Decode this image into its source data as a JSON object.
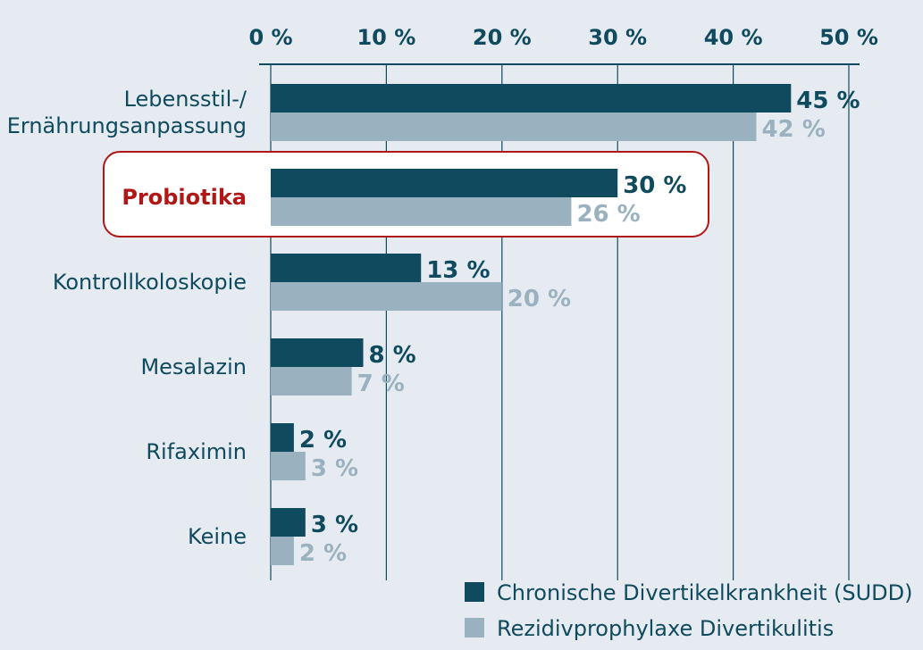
{
  "chart_data": {
    "type": "bar",
    "orientation": "horizontal",
    "categories": [
      "Lebensstil-/\nErnährungsanpassung",
      "Probiotika",
      "Kontrollkoloskopie",
      "Mesalazin",
      "Rifaximin",
      "Keine"
    ],
    "highlighted_category": "Probiotika",
    "series": [
      {
        "name": "Chronische Divertikelkrankheit (SUDD)",
        "values": [
          45,
          30,
          13,
          8,
          2,
          3
        ],
        "labels": [
          "45 %",
          "30 %",
          "13 %",
          "8 %",
          "2 %",
          "3 %"
        ],
        "color": "#0f4a5e"
      },
      {
        "name": "Rezidivprophylaxe Divertikulitis",
        "values": [
          42,
          26,
          20,
          7,
          3,
          2
        ],
        "labels": [
          "42 %",
          "26 %",
          "20 %",
          "7 %",
          "3 %",
          "2 %"
        ],
        "color": "#9ab1bf"
      }
    ],
    "xlim": [
      0,
      50
    ],
    "xticks": [
      0,
      10,
      20,
      30,
      40,
      50
    ],
    "xtick_labels": [
      "0 %",
      "10 %",
      "20 %",
      "30 %",
      "40 %",
      "50 %"
    ],
    "axis_position": "top",
    "grid": true,
    "legend_position": "bottom-right",
    "colors": {
      "background": "#e6ebf2",
      "grid": "#0f4a5e",
      "highlight": "#b01818"
    }
  }
}
